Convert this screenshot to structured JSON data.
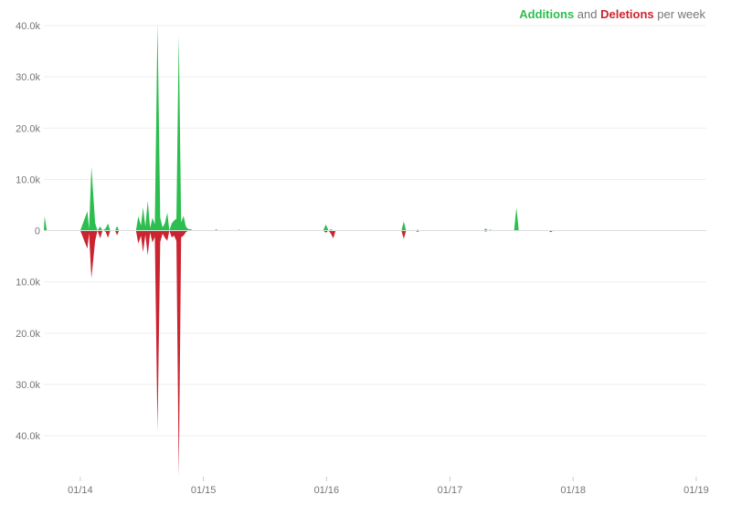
{
  "legend": {
    "additions_label": "Additions",
    "and_text": " and ",
    "deletions_label": "Deletions",
    "suffix_text": " per week"
  },
  "colors": {
    "additions": "#2cbe4e",
    "deletions": "#cb2431",
    "grid": "#eeeeee",
    "tick_text": "#767676"
  },
  "chart_data": {
    "type": "area",
    "title": "Additions and Deletions per week",
    "xlabel": "",
    "ylabel": "",
    "grid": true,
    "legend_position": "top-right",
    "x_ticks": [
      "01/14",
      "01/15",
      "01/16",
      "01/17",
      "01/18",
      "01/19"
    ],
    "x_range": [
      "2013-09-15",
      "2019-01-31"
    ],
    "y_ticks": [
      40000,
      30000,
      20000,
      10000,
      0,
      -10000,
      -20000,
      -30000,
      -40000
    ],
    "y_tick_labels": [
      "40.0k",
      "30.0k",
      "20.0k",
      "10.0k",
      "0",
      "10.0k",
      "20.0k",
      "30.0k",
      "40.0k"
    ],
    "ylim": [
      -48000,
      40000
    ],
    "series": [
      {
        "name": "Additions",
        "color": "#2cbe4e",
        "points": [
          [
            "2013-09-15",
            0
          ],
          [
            "2013-09-17",
            2800
          ],
          [
            "2013-09-24",
            0
          ],
          [
            "2013-10-20",
            0
          ],
          [
            "2013-11-10",
            0
          ],
          [
            "2014-01-01",
            0
          ],
          [
            "2014-01-22",
            3800
          ],
          [
            "2014-01-27",
            300
          ],
          [
            "2014-02-03",
            12500
          ],
          [
            "2014-02-14",
            1500
          ],
          [
            "2014-02-21",
            0
          ],
          [
            "2014-03-01",
            800
          ],
          [
            "2014-03-08",
            0
          ],
          [
            "2014-03-17",
            400
          ],
          [
            "2014-03-24",
            1400
          ],
          [
            "2014-03-31",
            0
          ],
          [
            "2014-04-14",
            0
          ],
          [
            "2014-04-20",
            900
          ],
          [
            "2014-04-26",
            0
          ],
          [
            "2014-06-15",
            0
          ],
          [
            "2014-06-22",
            2800
          ],
          [
            "2014-06-30",
            1000
          ],
          [
            "2014-07-06",
            4500
          ],
          [
            "2014-07-13",
            800
          ],
          [
            "2014-07-20",
            5800
          ],
          [
            "2014-07-27",
            500
          ],
          [
            "2014-08-03",
            2500
          ],
          [
            "2014-08-10",
            1200
          ],
          [
            "2014-08-18",
            40500
          ],
          [
            "2014-08-26",
            2500
          ],
          [
            "2014-09-02",
            600
          ],
          [
            "2014-09-09",
            1500
          ],
          [
            "2014-09-16",
            3500
          ],
          [
            "2014-09-22",
            0
          ],
          [
            "2014-09-29",
            1400
          ],
          [
            "2014-10-06",
            2000
          ],
          [
            "2014-10-13",
            2300
          ],
          [
            "2014-10-20",
            38000
          ],
          [
            "2014-10-27",
            1600
          ],
          [
            "2014-11-03",
            2900
          ],
          [
            "2014-11-10",
            800
          ],
          [
            "2014-11-17",
            300
          ],
          [
            "2014-11-24",
            300
          ],
          [
            "2014-12-01",
            0
          ],
          [
            "2015-02-01",
            0
          ],
          [
            "2015-02-08",
            250
          ],
          [
            "2015-02-15",
            0
          ],
          [
            "2015-04-10",
            0
          ],
          [
            "2015-04-17",
            200
          ],
          [
            "2015-04-24",
            0
          ],
          [
            "2015-12-22",
            0
          ],
          [
            "2015-12-30",
            1200
          ],
          [
            "2016-01-07",
            0
          ],
          [
            "2016-01-14",
            300
          ],
          [
            "2016-01-21",
            0
          ],
          [
            "2016-08-10",
            0
          ],
          [
            "2016-08-17",
            1800
          ],
          [
            "2016-08-24",
            0
          ],
          [
            "2016-09-20",
            0
          ],
          [
            "2016-09-27",
            200
          ],
          [
            "2016-10-04",
            0
          ],
          [
            "2017-04-10",
            0
          ],
          [
            "2017-04-17",
            400
          ],
          [
            "2017-04-24",
            0
          ],
          [
            "2017-05-01",
            200
          ],
          [
            "2017-05-08",
            0
          ],
          [
            "2017-07-10",
            0
          ],
          [
            "2017-07-17",
            4500
          ],
          [
            "2017-07-24",
            0
          ],
          [
            "2019-01-31",
            0
          ]
        ]
      },
      {
        "name": "Deletions",
        "color": "#cb2431",
        "points": [
          [
            "2013-09-15",
            0
          ],
          [
            "2014-01-01",
            0
          ],
          [
            "2014-01-22",
            -3500
          ],
          [
            "2014-01-27",
            -500
          ],
          [
            "2014-02-03",
            -9300
          ],
          [
            "2014-02-14",
            -2000
          ],
          [
            "2014-02-21",
            0
          ],
          [
            "2014-03-01",
            -1500
          ],
          [
            "2014-03-08",
            0
          ],
          [
            "2014-03-17",
            -200
          ],
          [
            "2014-03-24",
            -1400
          ],
          [
            "2014-03-31",
            0
          ],
          [
            "2014-04-14",
            0
          ],
          [
            "2014-04-20",
            -900
          ],
          [
            "2014-04-26",
            0
          ],
          [
            "2014-06-15",
            0
          ],
          [
            "2014-06-22",
            -2500
          ],
          [
            "2014-06-30",
            -1000
          ],
          [
            "2014-07-06",
            -4200
          ],
          [
            "2014-07-13",
            -800
          ],
          [
            "2014-07-20",
            -4800
          ],
          [
            "2014-07-27",
            -400
          ],
          [
            "2014-08-03",
            -2300
          ],
          [
            "2014-08-10",
            -1200
          ],
          [
            "2014-08-18",
            -39000
          ],
          [
            "2014-08-26",
            -2200
          ],
          [
            "2014-09-02",
            -600
          ],
          [
            "2014-09-09",
            -1400
          ],
          [
            "2014-09-16",
            -2000
          ],
          [
            "2014-09-22",
            0
          ],
          [
            "2014-09-29",
            -1300
          ],
          [
            "2014-10-06",
            -1000
          ],
          [
            "2014-10-13",
            -2000
          ],
          [
            "2014-10-20",
            -48000
          ],
          [
            "2014-10-27",
            -1300
          ],
          [
            "2014-11-03",
            -1000
          ],
          [
            "2014-11-10",
            -300
          ],
          [
            "2014-11-17",
            0
          ],
          [
            "2015-12-22",
            0
          ],
          [
            "2015-12-30",
            -400
          ],
          [
            "2016-01-07",
            0
          ],
          [
            "2016-01-14",
            -600
          ],
          [
            "2016-01-21",
            -1500
          ],
          [
            "2016-01-28",
            0
          ],
          [
            "2016-08-10",
            0
          ],
          [
            "2016-08-17",
            -1600
          ],
          [
            "2016-08-24",
            0
          ],
          [
            "2016-09-20",
            0
          ],
          [
            "2016-09-27",
            -250
          ],
          [
            "2016-10-04",
            0
          ],
          [
            "2017-04-10",
            0
          ],
          [
            "2017-04-17",
            -200
          ],
          [
            "2017-04-24",
            0
          ],
          [
            "2017-10-20",
            0
          ],
          [
            "2017-10-27",
            -300
          ],
          [
            "2017-11-03",
            0
          ],
          [
            "2019-01-31",
            0
          ]
        ]
      }
    ]
  }
}
